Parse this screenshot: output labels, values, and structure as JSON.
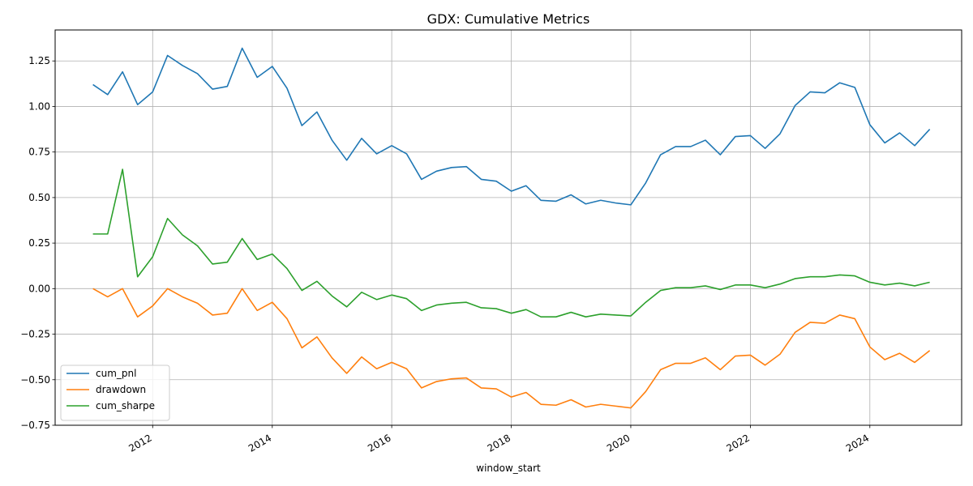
{
  "chart_data": {
    "type": "line",
    "title": "GDX: Cumulative Metrics",
    "xlabel": "window_start",
    "ylabel": "",
    "xlim": [
      "2010-05-15",
      "2025-07-15"
    ],
    "ylim": [
      -0.75,
      1.42
    ],
    "x_ticks": [
      "2012",
      "2014",
      "2016",
      "2018",
      "2020",
      "2022",
      "2024"
    ],
    "y_ticks": [
      "−0.75",
      "−0.50",
      "−0.25",
      "0.00",
      "0.25",
      "0.50",
      "0.75",
      "1.00",
      "1.25"
    ],
    "y_tick_values": [
      -0.75,
      -0.5,
      -0.25,
      0.0,
      0.25,
      0.5,
      0.75,
      1.0,
      1.25
    ],
    "grid": true,
    "legend_position": "lower-left",
    "x": [
      "2011-01-01",
      "2011-04-01",
      "2011-07-01",
      "2011-10-01",
      "2012-01-01",
      "2012-04-01",
      "2012-07-01",
      "2012-10-01",
      "2013-01-01",
      "2013-04-01",
      "2013-07-01",
      "2013-10-01",
      "2014-01-01",
      "2014-04-01",
      "2014-07-01",
      "2014-10-01",
      "2015-01-01",
      "2015-04-01",
      "2015-07-01",
      "2015-10-01",
      "2016-01-01",
      "2016-04-01",
      "2016-07-01",
      "2016-10-01",
      "2017-01-01",
      "2017-04-01",
      "2017-07-01",
      "2017-10-01",
      "2018-01-01",
      "2018-04-01",
      "2018-07-01",
      "2018-10-01",
      "2019-01-01",
      "2019-04-01",
      "2019-07-01",
      "2019-10-01",
      "2020-01-01",
      "2020-04-01",
      "2020-07-01",
      "2020-10-01",
      "2021-01-01",
      "2021-04-01",
      "2021-07-01",
      "2021-10-01",
      "2022-01-01",
      "2022-04-01",
      "2022-07-01",
      "2022-10-01",
      "2023-01-01",
      "2023-04-01",
      "2023-07-01",
      "2023-10-01",
      "2024-01-01",
      "2024-04-01",
      "2024-07-01",
      "2024-10-01",
      "2025-01-01"
    ],
    "series": [
      {
        "name": "cum_pnl",
        "color": "#1f77b4",
        "values": [
          1.12,
          1.065,
          1.19,
          1.01,
          1.08,
          1.28,
          1.225,
          1.18,
          1.095,
          1.11,
          1.32,
          1.16,
          1.22,
          1.1,
          0.895,
          0.97,
          0.815,
          0.705,
          0.825,
          0.74,
          0.785,
          0.74,
          0.6,
          0.645,
          0.665,
          0.67,
          0.6,
          0.59,
          0.535,
          0.565,
          0.485,
          0.48,
          0.515,
          0.465,
          0.485,
          0.47,
          0.46,
          0.58,
          0.735,
          0.78,
          0.78,
          0.815,
          0.735,
          0.835,
          0.84,
          0.77,
          0.85,
          1.005,
          1.08,
          1.075,
          1.13,
          1.105,
          0.9,
          0.8,
          0.855,
          0.785,
          0.875
        ]
      },
      {
        "name": "drawdown",
        "color": "#ff7f0e",
        "values": [
          0.0,
          -0.045,
          0.0,
          -0.155,
          -0.095,
          0.0,
          -0.045,
          -0.08,
          -0.145,
          -0.135,
          0.0,
          -0.12,
          -0.075,
          -0.165,
          -0.325,
          -0.265,
          -0.38,
          -0.465,
          -0.375,
          -0.44,
          -0.405,
          -0.44,
          -0.545,
          -0.51,
          -0.495,
          -0.49,
          -0.545,
          -0.55,
          -0.595,
          -0.57,
          -0.635,
          -0.64,
          -0.61,
          -0.65,
          -0.635,
          -0.645,
          -0.655,
          -0.565,
          -0.445,
          -0.41,
          -0.41,
          -0.38,
          -0.445,
          -0.37,
          -0.365,
          -0.42,
          -0.36,
          -0.24,
          -0.185,
          -0.19,
          -0.145,
          -0.165,
          -0.32,
          -0.39,
          -0.355,
          -0.405,
          -0.34
        ]
      },
      {
        "name": "cum_sharpe",
        "color": "#2ca02c",
        "values": [
          0.3,
          0.3,
          0.655,
          0.065,
          0.175,
          0.385,
          0.295,
          0.235,
          0.135,
          0.145,
          0.275,
          0.16,
          0.19,
          0.11,
          -0.01,
          0.04,
          -0.04,
          -0.1,
          -0.02,
          -0.06,
          -0.035,
          -0.055,
          -0.12,
          -0.09,
          -0.08,
          -0.075,
          -0.105,
          -0.11,
          -0.135,
          -0.115,
          -0.155,
          -0.155,
          -0.13,
          -0.155,
          -0.14,
          -0.145,
          -0.15,
          -0.075,
          -0.01,
          0.005,
          0.005,
          0.015,
          -0.005,
          0.02,
          0.02,
          0.005,
          0.025,
          0.055,
          0.065,
          0.065,
          0.075,
          0.07,
          0.035,
          0.02,
          0.03,
          0.015,
          0.035
        ]
      }
    ]
  }
}
